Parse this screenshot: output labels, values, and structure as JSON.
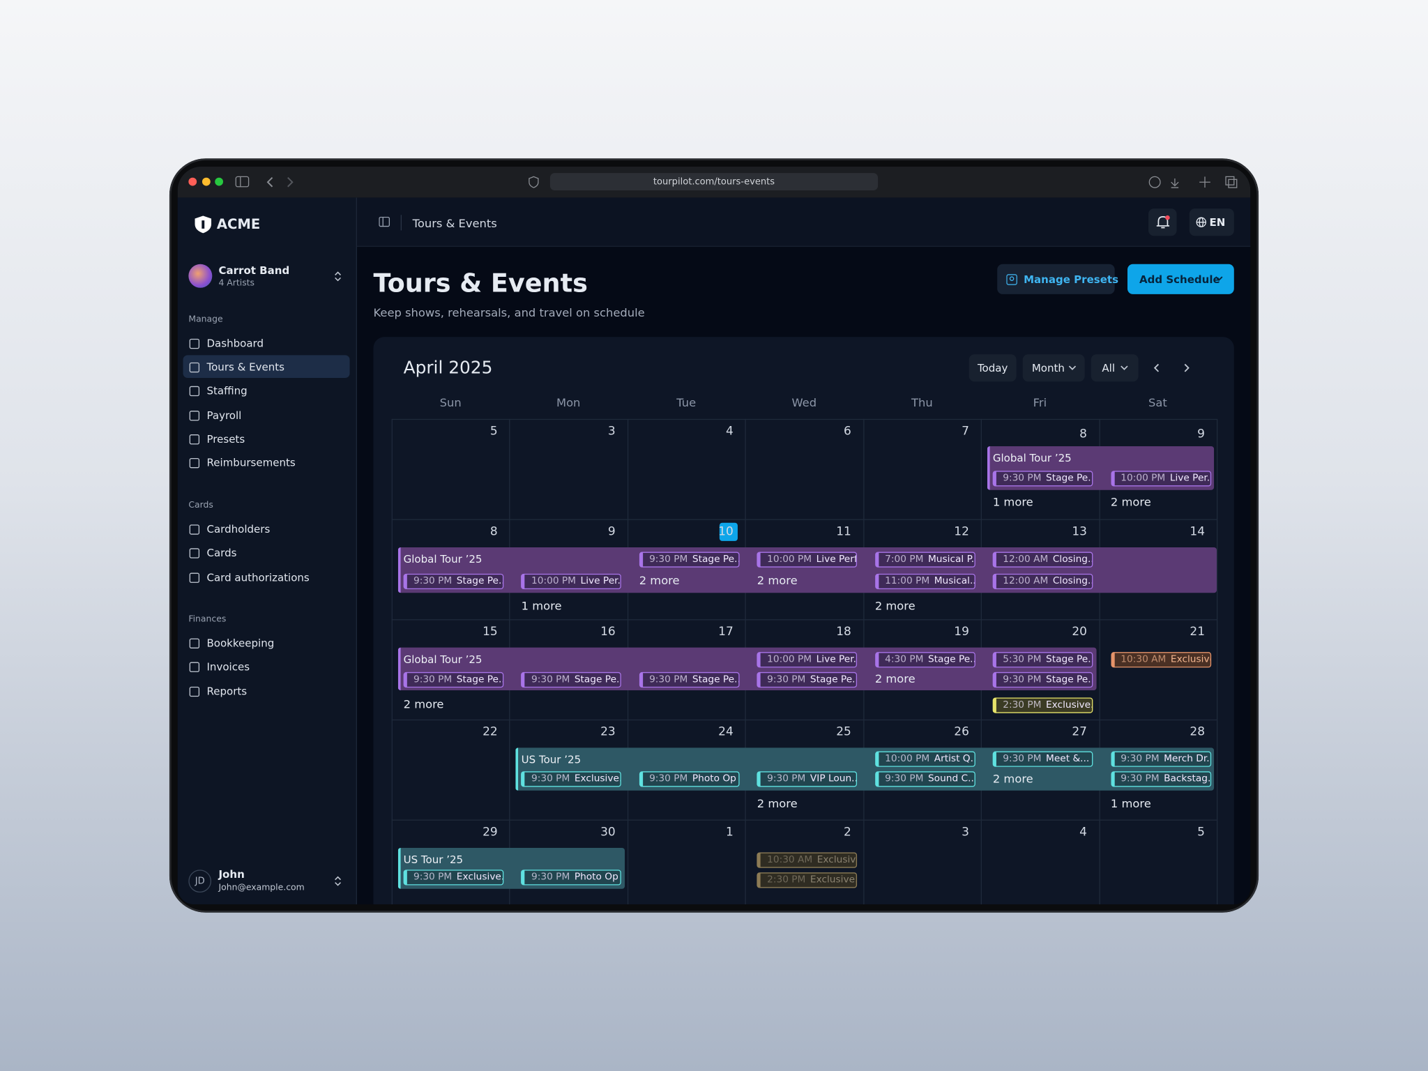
{
  "browser": {
    "url": "tourpilot.com/tours-events"
  },
  "sidebar": {
    "brand": "ACME",
    "team": {
      "name": "Carrot Band",
      "subtitle": "4 Artists"
    },
    "sections": [
      {
        "title": "Manage",
        "items": [
          "Dashboard",
          "Tours & Events",
          "Staffing",
          "Payroll",
          "Presets",
          "Reimbursements"
        ]
      },
      {
        "title": "Cards",
        "items": [
          "Cardholders",
          "Cards",
          "Card authorizations"
        ]
      },
      {
        "title": "Finances",
        "items": [
          "Bookkeeping",
          "Invoices",
          "Reports"
        ]
      }
    ],
    "user": {
      "initials": "JD",
      "name": "John",
      "email": "John@example.com"
    }
  },
  "header": {
    "breadcrumb": "Tours & Events",
    "language": "EN"
  },
  "page": {
    "title": "Tours & Events",
    "subtitle": "Keep shows, rehearsals, and travel on schedule",
    "actions": [
      "Manage Presets",
      "Add Schedule"
    ]
  },
  "calendar": {
    "title": "April 2025",
    "controls": [
      "Today",
      "Month",
      "All"
    ],
    "weekdays": [
      "Sun",
      "Mon",
      "Tue",
      "Wed",
      "Thu",
      "Fri",
      "Sat"
    ],
    "weeks": [
      {
        "tour": "Global Tour ’25",
        "days": [
          {
            "date": "5"
          },
          {
            "date": "3"
          },
          {
            "date": "4"
          },
          {
            "date": "6"
          },
          {
            "date": "7"
          },
          {
            "date": "8",
            "events": [
              {
                "time": "9:30 PM",
                "title": "Stage Pe..."
              }
            ],
            "more": "1 more"
          },
          {
            "date": "9",
            "events": [
              {
                "time": "10:00 PM",
                "title": "Live Per..."
              }
            ],
            "more": "2 more"
          }
        ]
      },
      {
        "tour": "Global Tour ’25",
        "days": [
          {
            "date": "8",
            "events": [
              {
                "time": "9:30 PM",
                "title": "Stage Pe..."
              }
            ]
          },
          {
            "date": "9",
            "events": [
              {
                "time": "10:00 PM",
                "title": "Live Per..."
              }
            ],
            "more": "1 more"
          },
          {
            "date": "10",
            "events": [
              {
                "time": "9:30 PM",
                "title": "Stage Pe..."
              }
            ],
            "more": "2 more"
          },
          {
            "date": "11",
            "events": [
              {
                "time": "10:00 PM",
                "title": "Live Perf..."
              }
            ],
            "more": "2 more"
          },
          {
            "date": "12",
            "events": [
              {
                "time": "7:00 PM",
                "title": "Musical P..."
              },
              {
                "time": "11:00 PM",
                "title": "Musical..."
              }
            ],
            "more": "2 more"
          },
          {
            "date": "13",
            "events": [
              {
                "time": "12:00 AM",
                "title": "Closing..."
              },
              {
                "time": "12:00 AM",
                "title": "Closing..."
              }
            ]
          },
          {
            "date": "14"
          }
        ]
      },
      {
        "tour": "Global Tour ’25",
        "days": [
          {
            "date": "15",
            "events": [
              {
                "time": "9:30 PM",
                "title": "Stage Pe..."
              }
            ],
            "more": "2 more"
          },
          {
            "date": "16",
            "events": [
              {
                "time": "9:30 PM",
                "title": "Stage Pe..."
              }
            ]
          },
          {
            "date": "17",
            "events": [
              {
                "time": "9:30 PM",
                "title": "Stage Pe..."
              }
            ]
          },
          {
            "date": "18",
            "events": [
              {
                "time": "10:00 PM",
                "title": "Live Per..."
              },
              {
                "time": "9:30 PM",
                "title": "Stage Pe..."
              }
            ]
          },
          {
            "date": "19",
            "events": [
              {
                "time": "4:30 PM",
                "title": "Stage Pe..."
              }
            ],
            "more": "2 more"
          },
          {
            "date": "20",
            "events": [
              {
                "time": "5:30 PM",
                "title": "Stage Pe..."
              },
              {
                "time": "9:30 PM",
                "title": "Stage Pe..."
              },
              {
                "time": "2:30 PM",
                "title": "Exclusive..."
              }
            ]
          },
          {
            "date": "21",
            "events": [
              {
                "time": "10:30 AM",
                "title": "Exclusive..."
              }
            ]
          }
        ]
      },
      {
        "tour": "US Tour ’25",
        "days": [
          {
            "date": "22"
          },
          {
            "date": "23",
            "events": [
              {
                "time": "9:30 PM",
                "title": "Exclusive..."
              }
            ]
          },
          {
            "date": "24",
            "events": [
              {
                "time": "9:30 PM",
                "title": "Photo Op"
              }
            ]
          },
          {
            "date": "25",
            "events": [
              {
                "time": "9:30 PM",
                "title": "VIP Loun..."
              }
            ],
            "more": "2 more"
          },
          {
            "date": "26",
            "events": [
              {
                "time": "10:00 PM",
                "title": "Artist Q..."
              },
              {
                "time": "9:30 PM",
                "title": "Sound C..."
              }
            ]
          },
          {
            "date": "27",
            "events": [
              {
                "time": "9:30 PM",
                "title": "Meet &..."
              }
            ],
            "more": "2 more"
          },
          {
            "date": "28",
            "events": [
              {
                "time": "9:30 PM",
                "title": "Merch Dr..."
              },
              {
                "time": "9:30 PM",
                "title": "Backstag..."
              }
            ],
            "more": "1 more"
          }
        ]
      },
      {
        "tour": "US Tour ’25",
        "days": [
          {
            "date": "29",
            "events": [
              {
                "time": "9:30 PM",
                "title": "Exclusive..."
              }
            ]
          },
          {
            "date": "30",
            "events": [
              {
                "time": "9:30 PM",
                "title": "Photo Op"
              }
            ]
          },
          {
            "date": "1"
          },
          {
            "date": "2",
            "events": [
              {
                "time": "10:30 AM",
                "title": "Exclusive..."
              },
              {
                "time": "2:30 PM",
                "title": "Exclusive..."
              }
            ]
          },
          {
            "date": "3"
          },
          {
            "date": "4"
          },
          {
            "date": "5"
          }
        ]
      }
    ]
  }
}
